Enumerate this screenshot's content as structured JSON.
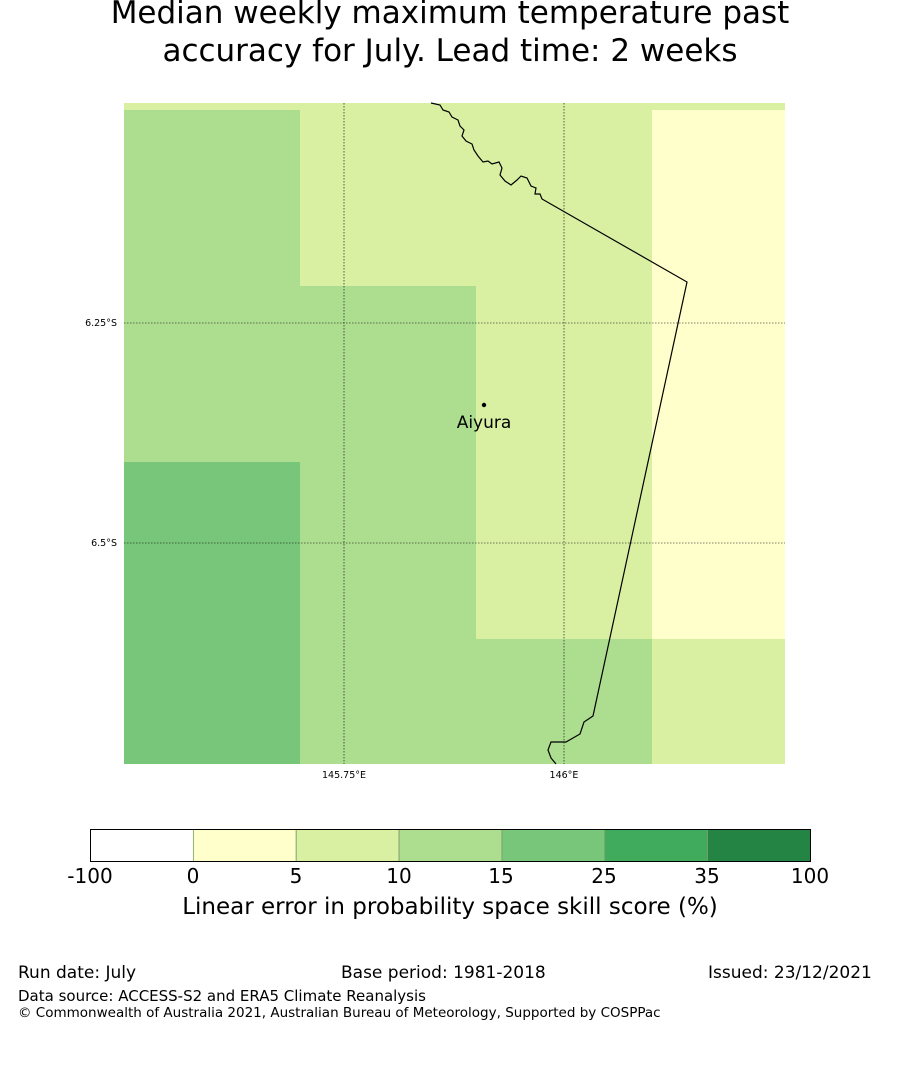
{
  "title": {
    "line1": "Median weekly maximum temperature past",
    "line2": "accuracy for July. Lead time: 2 weeks"
  },
  "map": {
    "lat_gridlines": [
      "6.25°S",
      "6.5°S"
    ],
    "lon_gridlines": [
      "145.75°E",
      "146°E"
    ],
    "place": "Aiyura",
    "cells": [
      {
        "row": 0,
        "col": 0,
        "value_class": 3
      },
      {
        "row": 0,
        "col": 1,
        "value_class": 2
      },
      {
        "row": 0,
        "col": 2,
        "value_class": 2
      },
      {
        "row": 0,
        "col": 3,
        "value_class": 1
      },
      {
        "row": 1,
        "col": 0,
        "value_class": 3
      },
      {
        "row": 1,
        "col": 1,
        "value_class": 3
      },
      {
        "row": 1,
        "col": 2,
        "value_class": 2
      },
      {
        "row": 1,
        "col": 3,
        "value_class": 1
      },
      {
        "row": 2,
        "col": 0,
        "value_class": 4
      },
      {
        "row": 2,
        "col": 1,
        "value_class": 3
      },
      {
        "row": 2,
        "col": 2,
        "value_class": 2
      },
      {
        "row": 2,
        "col": 3,
        "value_class": 1
      },
      {
        "row": 3,
        "col": 0,
        "value_class": 4
      },
      {
        "row": 3,
        "col": 1,
        "value_class": 3
      },
      {
        "row": 3,
        "col": 2,
        "value_class": 3
      },
      {
        "row": 3,
        "col": 3,
        "value_class": 2
      }
    ]
  },
  "colorbar": {
    "ticks": [
      "-100",
      "0",
      "5",
      "10",
      "15",
      "25",
      "35",
      "100"
    ],
    "colors": [
      "#ffffff",
      "#ffffcc",
      "#d9f0a3",
      "#addd8e",
      "#78c679",
      "#41ab5d",
      "#238443"
    ],
    "label": "Linear error in probability space skill score (%)"
  },
  "footer": {
    "run_date": "Run date: July",
    "base_period": "Base period: 1981-2018",
    "issued": "Issued: 23/12/2021",
    "data_source": "Data source: ACCESS-S2 and ERA5 Climate Reanalysis",
    "copyright": "© Commonwealth of Australia 2021, Australian Bureau of Meteorology, Supported by COSPPac"
  }
}
